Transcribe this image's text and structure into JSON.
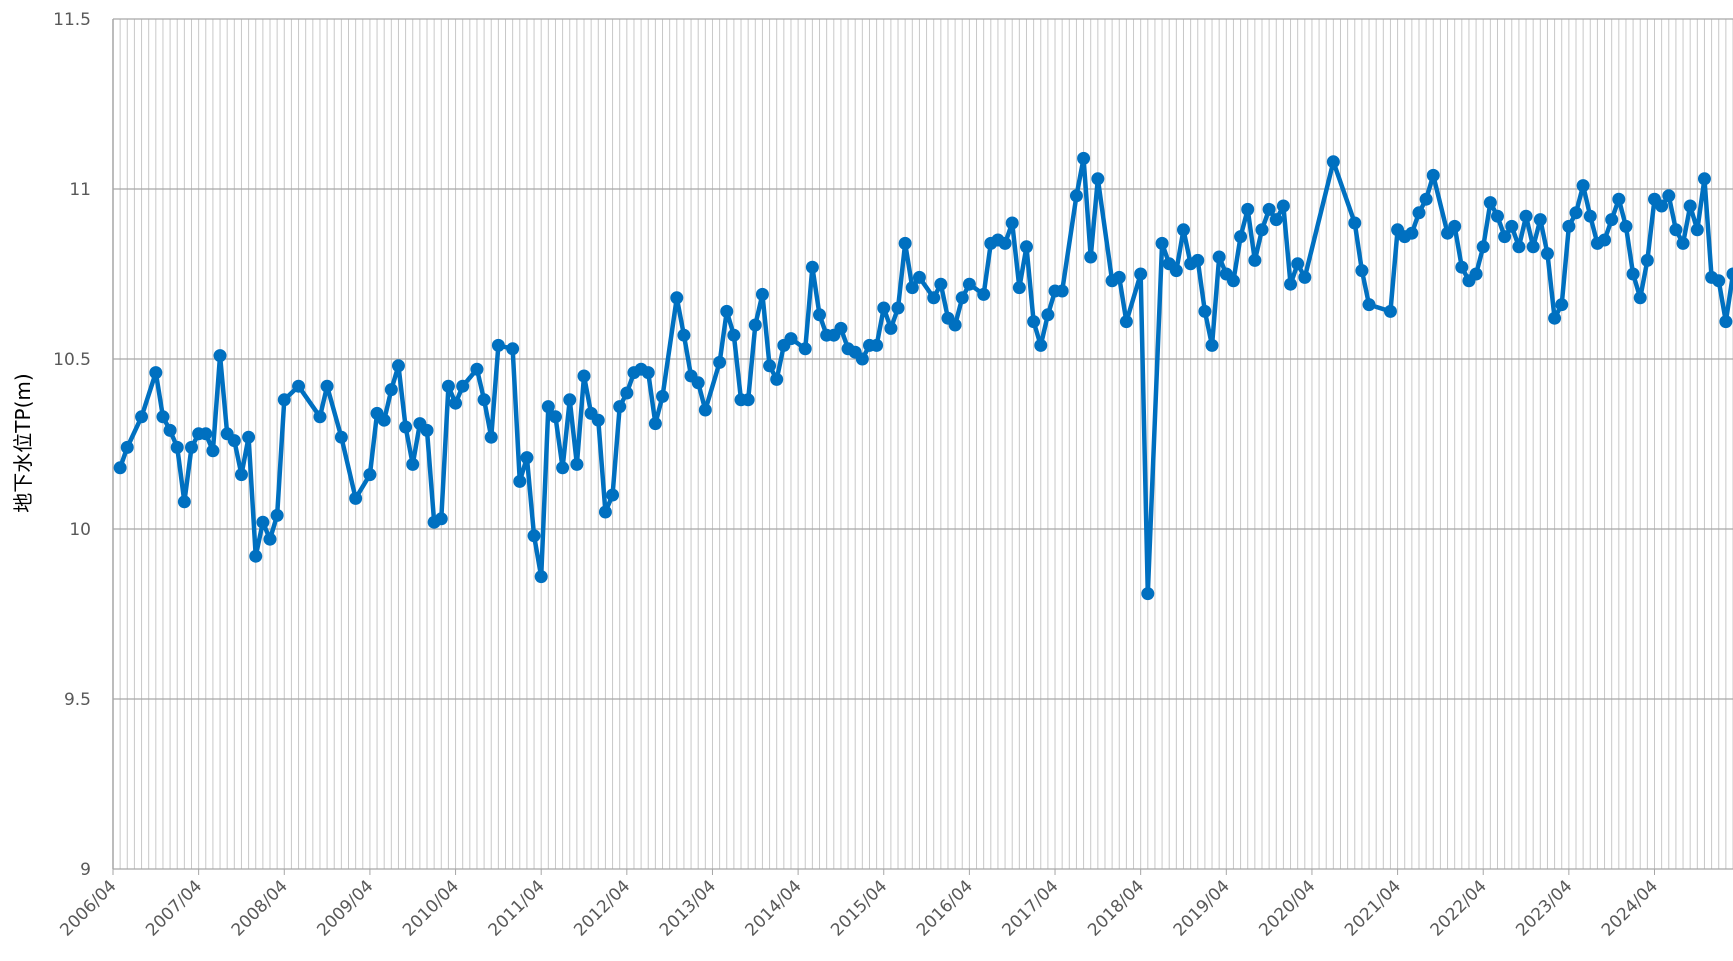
{
  "chart_data": {
    "type": "line",
    "y_label": "地下水位TP(m)",
    "color": "#0070c0",
    "grid": true,
    "ylim": [
      9,
      11.5
    ],
    "yticks": [
      9,
      9.5,
      10,
      10.5,
      11,
      11.5
    ],
    "xlim": [
      0,
      227
    ],
    "xticks": [
      {
        "value": 0,
        "label": "2006/04"
      },
      {
        "value": 12,
        "label": "2007/04"
      },
      {
        "value": 24,
        "label": "2008/04"
      },
      {
        "value": 36,
        "label": "2009/04"
      },
      {
        "value": 48,
        "label": "2010/04"
      },
      {
        "value": 60,
        "label": "2011/04"
      },
      {
        "value": 72,
        "label": "2012/04"
      },
      {
        "value": 84,
        "label": "2013/04"
      },
      {
        "value": 96,
        "label": "2014/04"
      },
      {
        "value": 108,
        "label": "2015/04"
      },
      {
        "value": 120,
        "label": "2016/04"
      },
      {
        "value": 132,
        "label": "2017/04"
      },
      {
        "value": 144,
        "label": "2018/04"
      },
      {
        "value": 156,
        "label": "2019/04"
      },
      {
        "value": 168,
        "label": "2020/04"
      },
      {
        "value": 180,
        "label": "2021/04"
      },
      {
        "value": 192,
        "label": "2022/04"
      },
      {
        "value": 204,
        "label": "2023/04"
      },
      {
        "value": 216,
        "label": "2024/04"
      }
    ],
    "x": [
      1,
      2,
      4,
      6,
      7,
      8,
      9,
      10,
      11,
      12,
      13,
      14,
      15,
      16,
      17,
      18,
      19,
      20,
      21,
      22,
      23,
      24,
      26,
      29,
      30,
      32,
      34,
      36,
      37,
      38,
      39,
      40,
      41,
      42,
      43,
      44,
      45,
      46,
      47,
      48,
      49,
      51,
      52,
      53,
      54,
      56,
      57,
      58,
      59,
      60,
      61,
      62,
      63,
      64,
      65,
      66,
      67,
      68,
      69,
      70,
      71,
      72,
      73,
      74,
      75,
      76,
      77,
      79,
      80,
      81,
      82,
      83,
      85,
      86,
      87,
      88,
      89,
      90,
      91,
      92,
      93,
      94,
      95,
      97,
      98,
      99,
      100,
      101,
      102,
      103,
      104,
      105,
      106,
      107,
      108,
      109,
      110,
      111,
      112,
      113,
      115,
      116,
      117,
      118,
      119,
      120,
      122,
      123,
      124,
      125,
      126,
      127,
      128,
      129,
      130,
      131,
      132,
      133,
      135,
      136,
      137,
      138,
      140,
      141,
      142,
      144,
      145,
      147,
      148,
      149,
      150,
      151,
      152,
      153,
      154,
      155,
      156,
      157,
      158,
      159,
      160,
      161,
      162,
      163,
      164,
      165,
      166,
      167,
      171,
      174,
      175,
      176,
      179,
      180,
      181,
      182,
      183,
      184,
      185,
      187,
      188,
      189,
      190,
      191,
      192,
      193,
      194,
      195,
      196,
      197,
      198,
      199,
      200,
      201,
      202,
      203,
      204,
      205,
      206,
      207,
      208,
      209,
      210,
      211,
      212,
      213,
      214,
      215,
      216,
      217,
      218,
      219,
      220,
      221,
      222,
      223,
      224,
      225,
      226,
      227
    ],
    "values": [
      10.18,
      10.24,
      10.33,
      10.46,
      10.33,
      10.29,
      10.24,
      10.08,
      10.24,
      10.28,
      10.28,
      10.23,
      10.51,
      10.28,
      10.26,
      10.16,
      10.27,
      9.92,
      10.02,
      9.97,
      10.04,
      10.38,
      10.42,
      10.33,
      10.42,
      10.27,
      10.09,
      10.16,
      10.34,
      10.32,
      10.41,
      10.48,
      10.3,
      10.19,
      10.31,
      10.29,
      10.02,
      10.03,
      10.42,
      10.37,
      10.42,
      10.47,
      10.38,
      10.27,
      10.54,
      10.53,
      10.14,
      10.21,
      9.98,
      9.86,
      10.36,
      10.33,
      10.18,
      10.38,
      10.19,
      10.45,
      10.34,
      10.32,
      10.05,
      10.1,
      10.36,
      10.4,
      10.46,
      10.47,
      10.46,
      10.31,
      10.39,
      10.68,
      10.57,
      10.45,
      10.43,
      10.35,
      10.49,
      10.64,
      10.57,
      10.38,
      10.38,
      10.6,
      10.69,
      10.48,
      10.44,
      10.54,
      10.56,
      10.53,
      10.77,
      10.63,
      10.57,
      10.57,
      10.59,
      10.53,
      10.52,
      10.5,
      10.54,
      10.54,
      10.65,
      10.59,
      10.65,
      10.84,
      10.71,
      10.74,
      10.68,
      10.72,
      10.62,
      10.6,
      10.68,
      10.72,
      10.69,
      10.84,
      10.85,
      10.84,
      10.9,
      10.71,
      10.83,
      10.61,
      10.54,
      10.63,
      10.7,
      10.7,
      10.98,
      11.09,
      10.8,
      11.03,
      10.73,
      10.74,
      10.61,
      10.75,
      9.81,
      10.84,
      10.78,
      10.76,
      10.88,
      10.78,
      10.79,
      10.64,
      10.54,
      10.8,
      10.75,
      10.73,
      10.86,
      10.94,
      10.79,
      10.88,
      10.94,
      10.91,
      10.95,
      10.72,
      10.78,
      10.74,
      11.08,
      10.9,
      10.76,
      10.66,
      10.64,
      10.88,
      10.86,
      10.87,
      10.93,
      10.97,
      11.04,
      10.87,
      10.89,
      10.77,
      10.73,
      10.75,
      10.83,
      10.96,
      10.92,
      10.86,
      10.89,
      10.83,
      10.92,
      10.83,
      10.91,
      10.81,
      10.62,
      10.66,
      10.89,
      10.93,
      11.01,
      10.92,
      10.84,
      10.85,
      10.91,
      10.97,
      10.89,
      10.75,
      10.68,
      10.79,
      10.97,
      10.95,
      10.98,
      10.88,
      10.84,
      10.95,
      10.88,
      11.03,
      10.74,
      10.73,
      10.61,
      10.75
    ]
  }
}
